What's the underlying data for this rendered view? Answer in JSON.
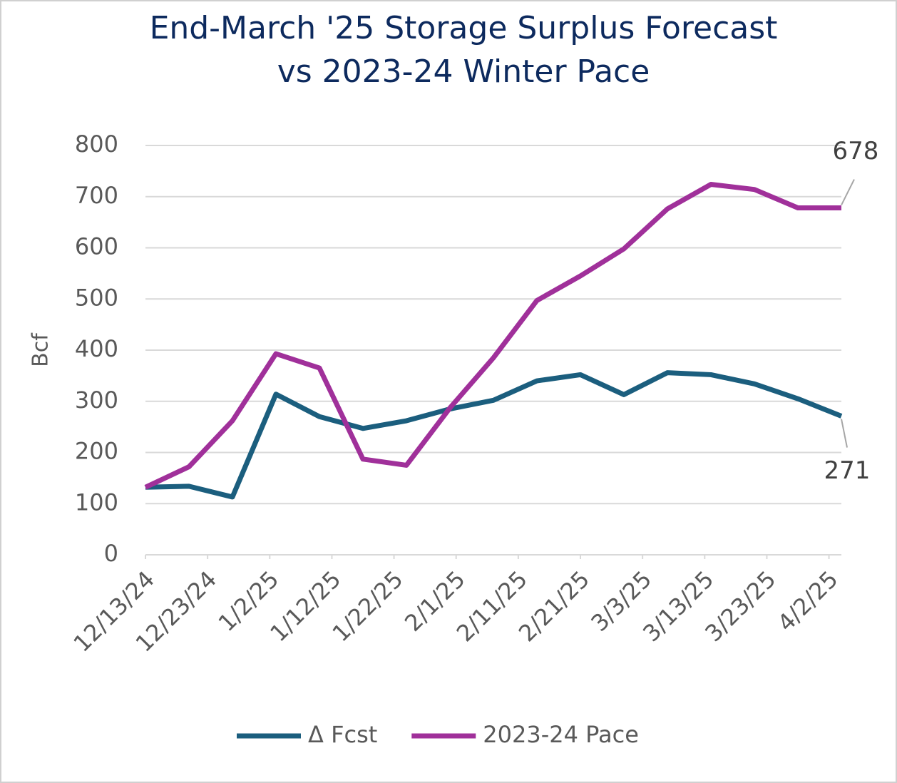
{
  "chart_data": {
    "type": "line",
    "title": "End-March '25 Storage Surplus Forecast",
    "subtitle": "vs 2023-24 Winter Pace",
    "y_label": "Bcf",
    "x": [
      "12/13/24",
      "12/20/24",
      "12/27/24",
      "1/3/25",
      "1/10/25",
      "1/17/25",
      "1/24/25",
      "1/31/25",
      "2/7/25",
      "2/14/25",
      "2/21/25",
      "2/28/25",
      "3/7/25",
      "3/14/25",
      "3/21/25",
      "3/28/25",
      "4/4/25"
    ],
    "series": [
      {
        "name": "Δ Fcst",
        "color": "#1b5e7e",
        "values": [
          132,
          134,
          113,
          314,
          270,
          247,
          262,
          285,
          302,
          340,
          352,
          313,
          356,
          352,
          334,
          305,
          271
        ]
      },
      {
        "name": "2023-24 Pace",
        "color": "#a0309a",
        "values": [
          132,
          172,
          262,
          393,
          365,
          187,
          175,
          287,
          385,
          497,
          545,
          598,
          676,
          724,
          714,
          678,
          678
        ]
      }
    ],
    "xlim": [
      "12/13/24",
      "4/4/25"
    ],
    "xticks": [
      "12/13/24",
      "12/23/24",
      "1/2/25",
      "1/12/25",
      "1/22/25",
      "2/1/25",
      "2/11/25",
      "2/21/25",
      "3/3/25",
      "3/13/25",
      "3/23/25",
      "4/2/25"
    ],
    "ylim": [
      0,
      800
    ],
    "yticks": [
      0,
      100,
      200,
      300,
      400,
      500,
      600,
      700,
      800
    ],
    "grid": true,
    "legend": "bottom"
  }
}
